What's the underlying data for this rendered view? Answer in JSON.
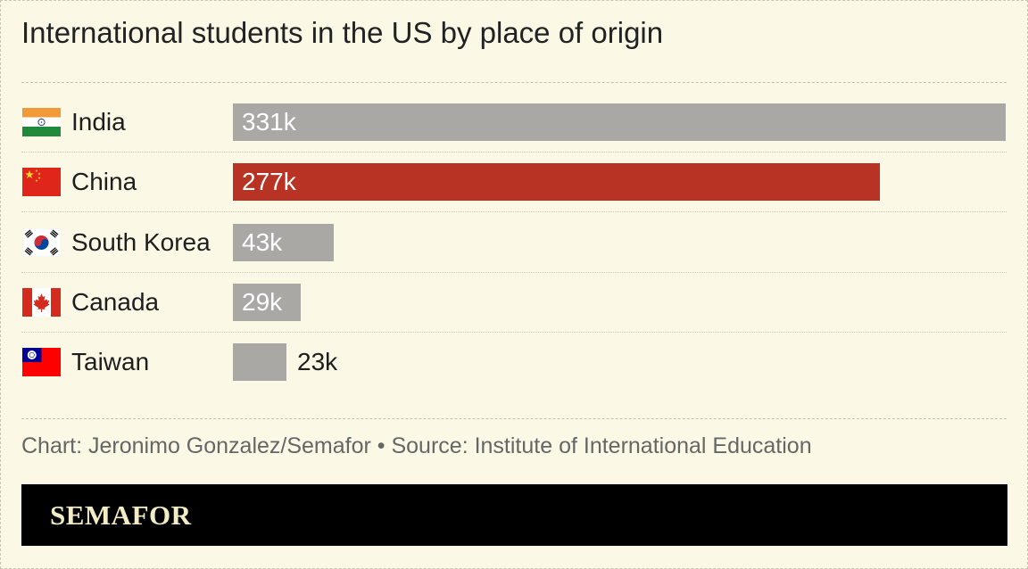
{
  "colors": {
    "background": "#fbf8e6",
    "bar_default": "#a9a8a4",
    "bar_highlight": "#b83323",
    "footer": "#000000",
    "logo_text": "#f3ecc5"
  },
  "chart_data": {
    "type": "bar",
    "orientation": "horizontal",
    "title": "International students in the US by place of origin",
    "categories": [
      "India",
      "China",
      "South Korea",
      "Canada",
      "Taiwan"
    ],
    "values": [
      331,
      277,
      43,
      29,
      23
    ],
    "value_labels": [
      "331k",
      "277k",
      "43k",
      "29k",
      "23k"
    ],
    "highlight": "China",
    "flags": [
      "india-flag-icon",
      "china-flag-icon",
      "south-korea-flag-icon",
      "canada-flag-icon",
      "taiwan-flag-icon"
    ],
    "xlim": [
      0,
      331
    ],
    "grid": false,
    "legend": "none"
  },
  "credit": "Chart: Jeronimo Gonzalez/Semafor • Source: Institute of International Education",
  "footer": {
    "logo": "SEMAFOR"
  }
}
